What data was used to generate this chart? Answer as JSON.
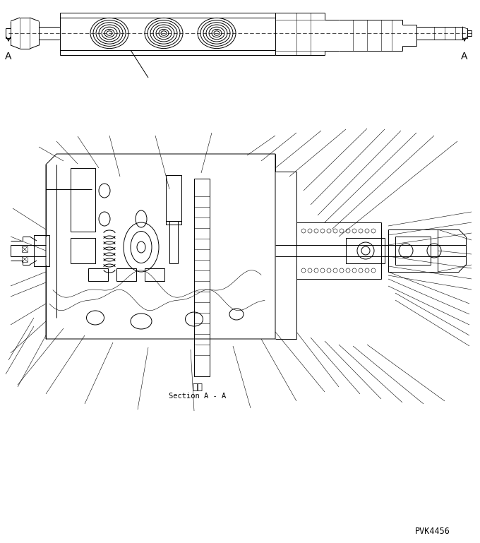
{
  "bg_color": "#ffffff",
  "line_color": "#000000",
  "lw": 0.7,
  "tlw": 0.4,
  "section_japanese": "断面",
  "section_english": "Section A - A",
  "part_number": "PVK4456",
  "fig_width": 6.8,
  "fig_height": 7.69,
  "dpi": 100
}
